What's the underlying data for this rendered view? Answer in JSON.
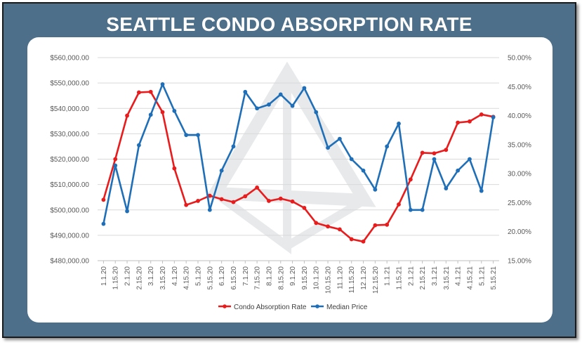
{
  "title": "SEATTLE CONDO ABSORPTION RATE",
  "chart_data": {
    "type": "line",
    "title": "SEATTLE CONDO ABSORPTION RATE",
    "categories": [
      "1.1.20",
      "1.15.20",
      "2.1.20",
      "2.15.20",
      "3.1.20",
      "3.15.20",
      "4.1.20",
      "4.15.20",
      "5.1.20",
      "5.15.20",
      "6.1.20",
      "6.15.20",
      "7.1.20",
      "7.15.20",
      "8.1.20",
      "8.15.20",
      "9.1.20",
      "9.15.20",
      "10.1.20",
      "10.15.20",
      "11.1.20",
      "11.15.20",
      "12.1.20",
      "12.15.20",
      "1.1.21",
      "1.15.21",
      "2.1.21",
      "2.15.21",
      "3.1.21",
      "3.15.21",
      "4.1.21",
      "4.15.21",
      "5.1.21",
      "5.15.21"
    ],
    "y_left": {
      "label": "",
      "min": 480000,
      "max": 560000,
      "step": 10000,
      "ticks": [
        "$480,000.00",
        "$490,000.00",
        "$500,000.00",
        "$510,000.00",
        "$520,000.00",
        "$530,000.00",
        "$540,000.00",
        "$550,000.00",
        "$560,000.00"
      ]
    },
    "y_right": {
      "label": "",
      "min": 0.15,
      "max": 0.5,
      "step": 0.05,
      "ticks": [
        "15.00%",
        "20.00%",
        "25.00%",
        "30.00%",
        "35.00%",
        "40.00%",
        "45.00%",
        "50.00%"
      ]
    },
    "series": [
      {
        "name": "Condo Absorption Rate",
        "axis": "right",
        "color": "#e81c1c",
        "values": [
          0.255,
          0.325,
          0.4,
          0.44,
          0.441,
          0.406,
          0.309,
          0.246,
          0.253,
          0.262,
          0.256,
          0.251,
          0.261,
          0.276,
          0.253,
          0.257,
          0.252,
          0.241,
          0.215,
          0.209,
          0.204,
          0.187,
          0.183,
          0.211,
          0.212,
          0.247,
          0.29,
          0.336,
          0.335,
          0.341,
          0.388,
          0.39,
          0.402,
          0.398
        ]
      },
      {
        "name": "Median Price",
        "axis": "left",
        "color": "#1f6fb8",
        "values": [
          494500,
          517500,
          499500,
          525500,
          537500,
          549500,
          539000,
          529500,
          529500,
          500000,
          515500,
          525000,
          546500,
          540000,
          541500,
          545500,
          541000,
          548000,
          538500,
          524500,
          528000,
          520000,
          515500,
          508000,
          525000,
          534000,
          500000,
          500000,
          520000,
          508500,
          515500,
          520000,
          507500,
          536500
        ]
      }
    ],
    "legend_position": "bottom",
    "grid": true
  }
}
